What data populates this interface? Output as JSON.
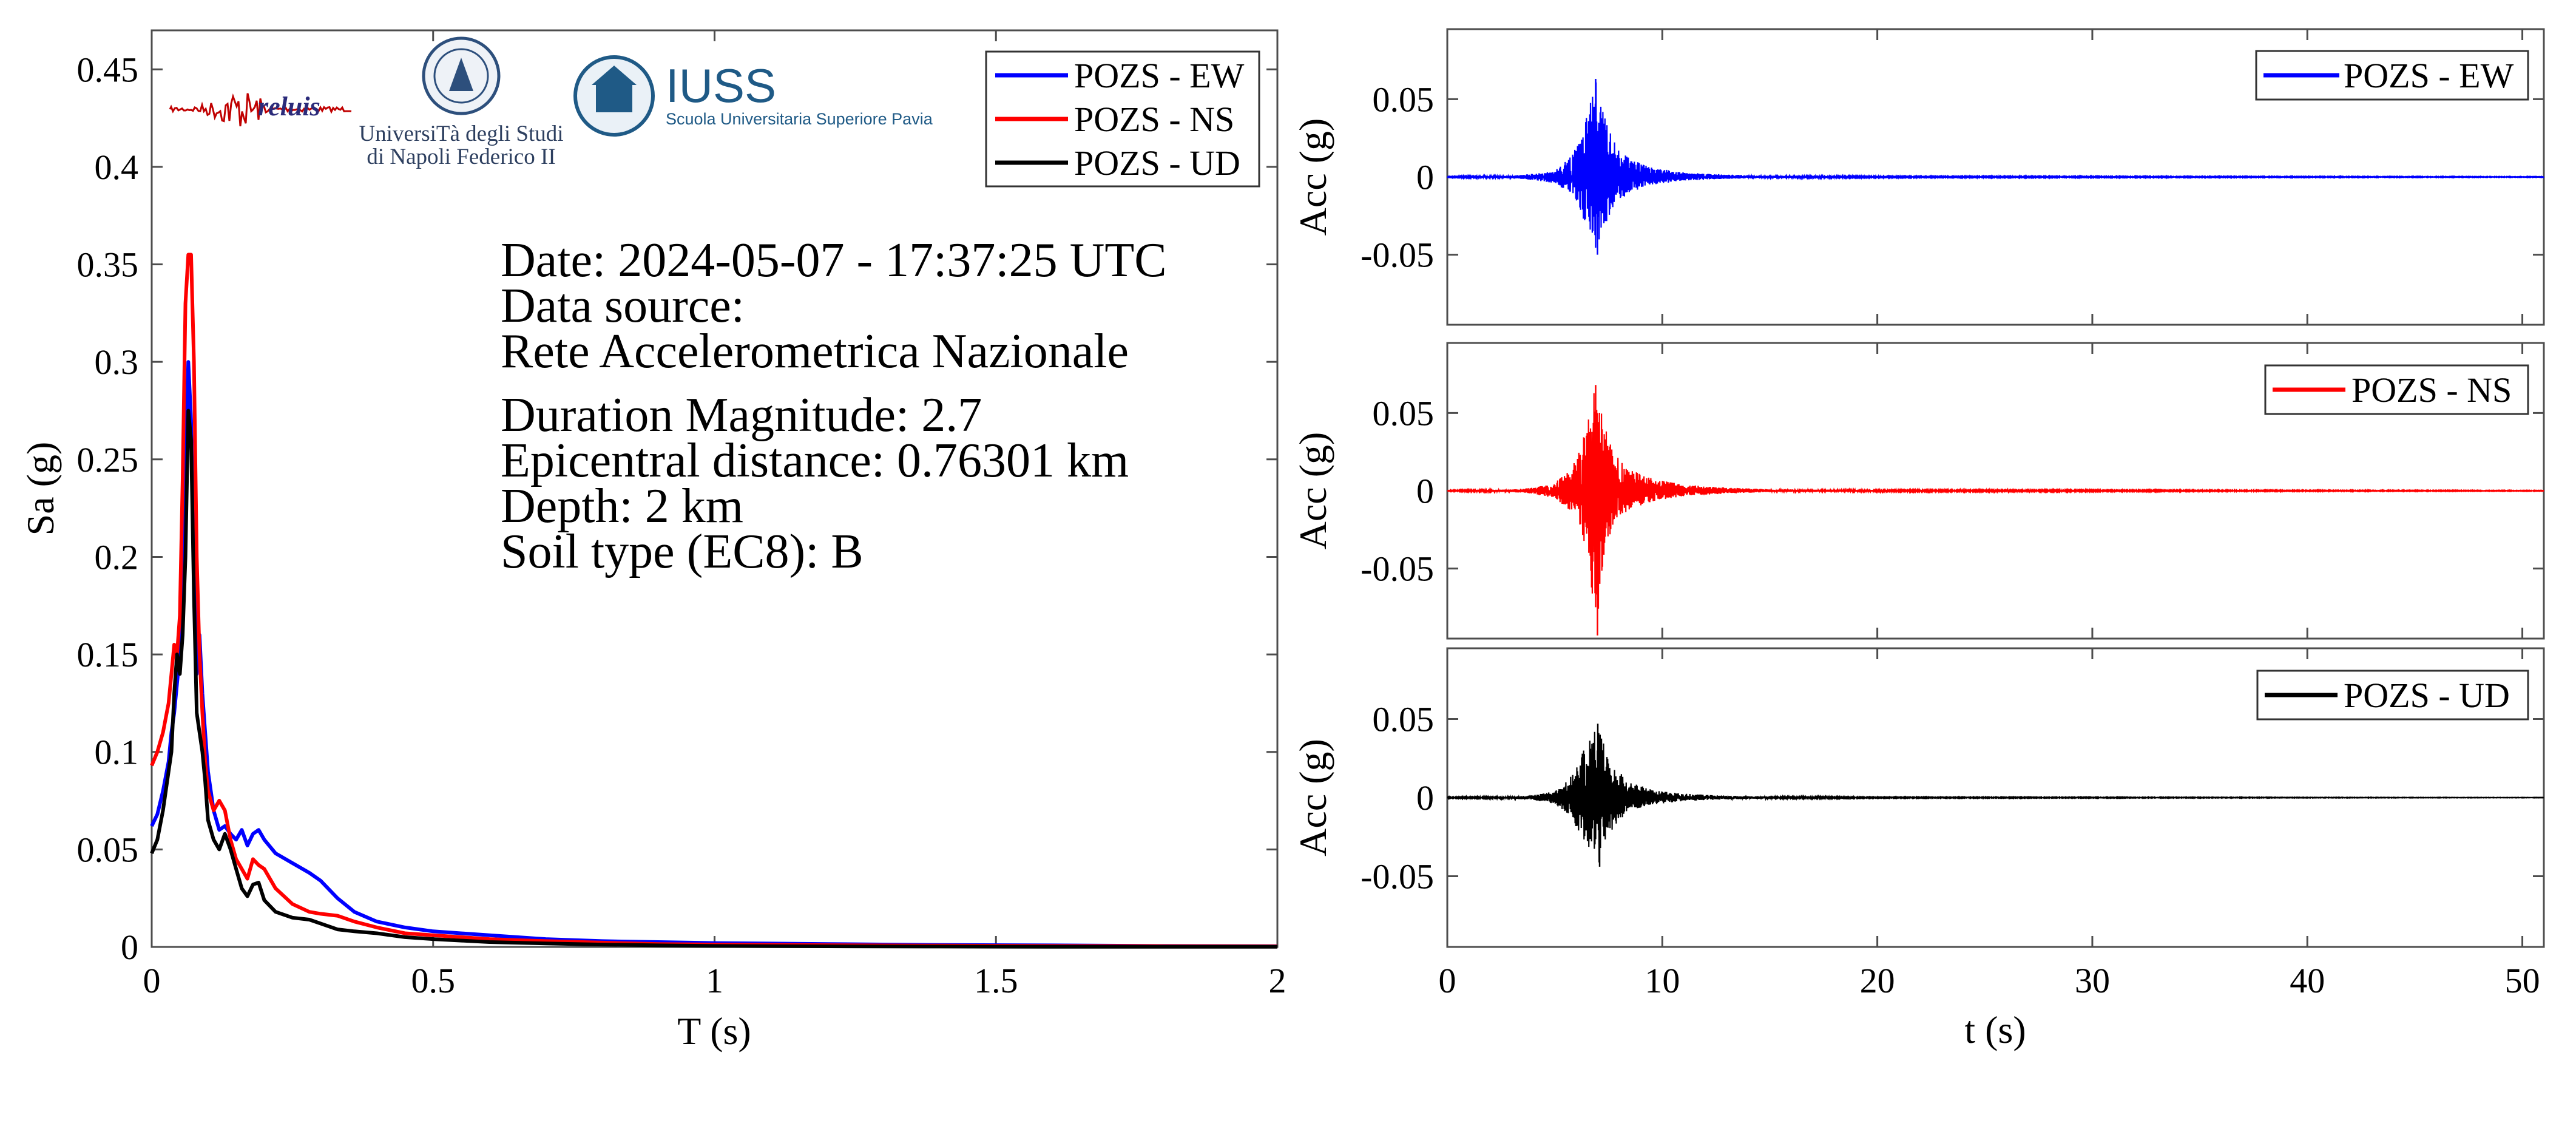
{
  "colors": {
    "ew": "#0000ff",
    "ns": "#ff0000",
    "ud": "#000000",
    "axis": "#4d4d4d",
    "iuss": "#1f5a86"
  },
  "logos": {
    "reluis_label": "reluis",
    "unina_line1": "UniversiTà degli Studi",
    "unina_line2": "di Napoli Federico II",
    "iuss_title": "IUSS",
    "iuss_subtitle": "Scuola Universitaria Superiore Pavia"
  },
  "info": {
    "date": "Date: 2024-05-07 - 17:37:25 UTC",
    "source_label": "Data source:",
    "source_value": "Rete Accelerometrica Nazionale",
    "magnitude": "Duration Magnitude: 2.7",
    "distance": "Epicentral distance: 0.76301 km",
    "depth": "Depth: 2 km",
    "soil": "Soil type (EC8): B"
  },
  "chart_data": [
    {
      "type": "line",
      "xlabel": "T (s)",
      "ylabel": "Sa (g)",
      "xlim": [
        0,
        2
      ],
      "ylim": [
        0,
        0.47
      ],
      "xticks": [
        "0",
        "0.5",
        "1",
        "1.5",
        "2"
      ],
      "yticks": [
        "0",
        "0.05",
        "0.1",
        "0.15",
        "0.2",
        "0.25",
        "0.3",
        "0.35",
        "0.4",
        "0.45"
      ],
      "legend": "top-right",
      "series": [
        {
          "name": "POZS - EW",
          "x": [
            0,
            0.01,
            0.02,
            0.03,
            0.035,
            0.04,
            0.045,
            0.05,
            0.055,
            0.06,
            0.065,
            0.07,
            0.075,
            0.08,
            0.085,
            0.09,
            0.095,
            0.1,
            0.11,
            0.12,
            0.13,
            0.14,
            0.15,
            0.16,
            0.17,
            0.18,
            0.19,
            0.2,
            0.22,
            0.25,
            0.28,
            0.3,
            0.33,
            0.36,
            0.4,
            0.45,
            0.5,
            0.6,
            0.7,
            0.8,
            0.9,
            1.0,
            1.2,
            1.4,
            1.6,
            1.8,
            2.0
          ],
          "y": [
            0.062,
            0.068,
            0.08,
            0.095,
            0.11,
            0.12,
            0.135,
            0.15,
            0.18,
            0.24,
            0.3,
            0.27,
            0.19,
            0.14,
            0.16,
            0.13,
            0.11,
            0.09,
            0.07,
            0.06,
            0.062,
            0.058,
            0.055,
            0.06,
            0.052,
            0.058,
            0.06,
            0.055,
            0.048,
            0.043,
            0.038,
            0.034,
            0.025,
            0.018,
            0.013,
            0.01,
            0.008,
            0.006,
            0.004,
            0.003,
            0.0025,
            0.002,
            0.0015,
            0.001,
            0.0008,
            0.0005,
            0.0004
          ]
        },
        {
          "name": "POZS - NS",
          "x": [
            0,
            0.01,
            0.02,
            0.03,
            0.035,
            0.04,
            0.045,
            0.05,
            0.055,
            0.06,
            0.065,
            0.07,
            0.075,
            0.08,
            0.085,
            0.09,
            0.095,
            0.1,
            0.11,
            0.12,
            0.13,
            0.14,
            0.15,
            0.16,
            0.17,
            0.18,
            0.19,
            0.2,
            0.22,
            0.25,
            0.28,
            0.3,
            0.33,
            0.36,
            0.4,
            0.45,
            0.5,
            0.6,
            0.7,
            0.8,
            0.9,
            1.0,
            1.2,
            1.4,
            1.6,
            1.8,
            2.0
          ],
          "y": [
            0.093,
            0.1,
            0.11,
            0.125,
            0.14,
            0.155,
            0.15,
            0.17,
            0.24,
            0.33,
            0.355,
            0.355,
            0.3,
            0.2,
            0.15,
            0.12,
            0.095,
            0.08,
            0.07,
            0.075,
            0.07,
            0.055,
            0.045,
            0.04,
            0.035,
            0.045,
            0.042,
            0.04,
            0.03,
            0.022,
            0.018,
            0.017,
            0.016,
            0.013,
            0.01,
            0.007,
            0.006,
            0.004,
            0.003,
            0.0022,
            0.0015,
            0.0012,
            0.0009,
            0.0007,
            0.0005,
            0.0004,
            0.0003
          ]
        },
        {
          "name": "POZS - UD",
          "x": [
            0,
            0.01,
            0.02,
            0.03,
            0.035,
            0.04,
            0.045,
            0.05,
            0.055,
            0.06,
            0.065,
            0.07,
            0.075,
            0.08,
            0.085,
            0.09,
            0.095,
            0.1,
            0.11,
            0.12,
            0.13,
            0.14,
            0.15,
            0.16,
            0.17,
            0.18,
            0.19,
            0.2,
            0.22,
            0.25,
            0.28,
            0.3,
            0.33,
            0.36,
            0.4,
            0.45,
            0.5,
            0.6,
            0.7,
            0.8,
            0.9,
            1.0,
            1.2,
            1.4,
            1.6,
            1.8,
            2.0
          ],
          "y": [
            0.048,
            0.055,
            0.07,
            0.09,
            0.1,
            0.13,
            0.15,
            0.14,
            0.16,
            0.2,
            0.275,
            0.26,
            0.18,
            0.12,
            0.11,
            0.1,
            0.085,
            0.065,
            0.055,
            0.05,
            0.058,
            0.05,
            0.04,
            0.03,
            0.026,
            0.032,
            0.033,
            0.024,
            0.018,
            0.015,
            0.014,
            0.012,
            0.009,
            0.008,
            0.007,
            0.005,
            0.004,
            0.0025,
            0.0018,
            0.0012,
            0.0008,
            0.0005,
            0.0003,
            0.0002,
            0.0001,
            0.0001,
            0.0001
          ]
        }
      ]
    },
    {
      "type": "line",
      "xlabel": "",
      "ylabel": "Acc (g)",
      "xlim": [
        0,
        51
      ],
      "ylim": [
        -0.095,
        0.095
      ],
      "xticks": [],
      "yticks": [
        "0.05",
        "0",
        "-0.05"
      ],
      "legend": "top-right",
      "series": [
        {
          "name": "POZS - EW",
          "envelope_t": [
            0,
            3,
            4,
            5,
            5.8,
            6.2,
            6.6,
            6.9,
            7.3,
            7.8,
            8.5,
            9.5,
            11,
            13,
            15,
            20,
            51
          ],
          "envelope_pos": [
            0.0003,
            0.0008,
            0.002,
            0.004,
            0.014,
            0.025,
            0.045,
            0.063,
            0.04,
            0.022,
            0.012,
            0.006,
            0.003,
            0.0015,
            0.0008,
            0.0004,
            0.0002
          ],
          "envelope_neg": [
            -0.0003,
            -0.0008,
            -0.002,
            -0.004,
            -0.012,
            -0.022,
            -0.038,
            -0.05,
            -0.032,
            -0.018,
            -0.01,
            -0.005,
            -0.0025,
            -0.0012,
            -0.0007,
            -0.0004,
            -0.0002
          ]
        }
      ]
    },
    {
      "type": "line",
      "xlabel": "",
      "ylabel": "Acc (g)",
      "xlim": [
        0,
        51
      ],
      "ylim": [
        -0.095,
        0.095
      ],
      "xticks": [],
      "yticks": [
        "0.05",
        "0",
        "-0.05"
      ],
      "legend": "top-right",
      "series": [
        {
          "name": "POZS - NS",
          "envelope_t": [
            0,
            3,
            4,
            5,
            5.8,
            6.2,
            6.6,
            6.9,
            7.3,
            7.8,
            8.5,
            9.5,
            11,
            13,
            15,
            20,
            51
          ],
          "envelope_pos": [
            0.0003,
            0.0008,
            0.002,
            0.005,
            0.015,
            0.028,
            0.048,
            0.068,
            0.042,
            0.024,
            0.014,
            0.008,
            0.004,
            0.002,
            0.001,
            0.0005,
            0.0002
          ],
          "envelope_neg": [
            -0.0003,
            -0.0008,
            -0.002,
            -0.005,
            -0.014,
            -0.025,
            -0.045,
            -0.093,
            -0.04,
            -0.02,
            -0.012,
            -0.007,
            -0.0035,
            -0.0018,
            -0.0009,
            -0.0005,
            -0.0002
          ]
        }
      ]
    },
    {
      "type": "line",
      "xlabel": "t (s)",
      "ylabel": "Acc (g)",
      "xlim": [
        0,
        51
      ],
      "ylim": [
        -0.095,
        0.095
      ],
      "xticks": [
        "0",
        "10",
        "20",
        "30",
        "40",
        "50"
      ],
      "yticks": [
        "0.05",
        "0",
        "-0.05"
      ],
      "legend": "top-right",
      "series": [
        {
          "name": "POZS - UD",
          "envelope_t": [
            0,
            3,
            4,
            5,
            5.8,
            6.2,
            6.6,
            7.0,
            7.4,
            7.9,
            8.5,
            9.5,
            11,
            13,
            15,
            20,
            51
          ],
          "envelope_pos": [
            0.0003,
            0.0006,
            0.0015,
            0.004,
            0.014,
            0.026,
            0.038,
            0.047,
            0.03,
            0.018,
            0.01,
            0.005,
            0.0025,
            0.0012,
            0.0006,
            0.0003,
            0.0001
          ],
          "envelope_neg": [
            -0.0003,
            -0.0006,
            -0.0015,
            -0.004,
            -0.013,
            -0.025,
            -0.036,
            -0.044,
            -0.028,
            -0.016,
            -0.009,
            -0.0045,
            -0.0022,
            -0.0011,
            -0.0006,
            -0.0003,
            -0.0001
          ]
        }
      ]
    }
  ]
}
